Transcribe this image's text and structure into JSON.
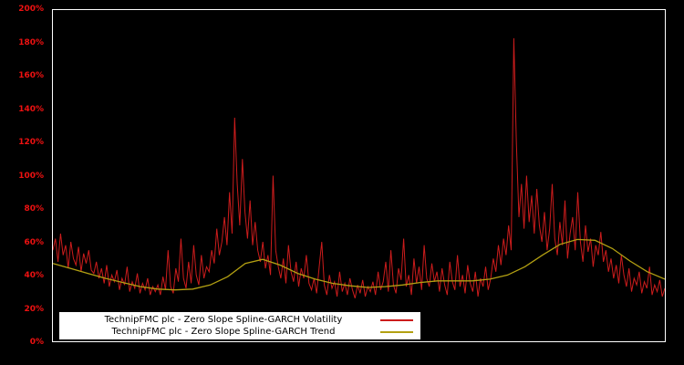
{
  "colors": {
    "background": "#000000",
    "plot_border": "#ffffff",
    "axis_label": "#ee1111",
    "volatility_line": "#cc1c1c",
    "trend_line": "#b3a012",
    "legend_background": "#ffffff",
    "legend_text": "#000000"
  },
  "chart_data": {
    "type": "line",
    "title": "",
    "xlabel": "",
    "ylabel": "",
    "ylim": [
      0,
      200
    ],
    "grid": false,
    "legend_position": "bottom-left-inside",
    "yticks": [
      "0%",
      "20%",
      "40%",
      "60%",
      "80%",
      "100%",
      "120%",
      "140%",
      "160%",
      "180%",
      "200%"
    ],
    "series": [
      {
        "name": "TechnipFMC plc - Zero Slope Spline-GARCH Volatility",
        "color": "#cc1c1c",
        "width": 1,
        "values": [
          55,
          62,
          48,
          65,
          52,
          58,
          44,
          60,
          50,
          46,
          57,
          42,
          53,
          47,
          55,
          43,
          41,
          48,
          38,
          44,
          35,
          46,
          33,
          40,
          36,
          43,
          31,
          38,
          34,
          45,
          30,
          36,
          32,
          41,
          29,
          35,
          31,
          38,
          28,
          33,
          30,
          34,
          28,
          39,
          31,
          55,
          33,
          29,
          44,
          36,
          62,
          38,
          32,
          48,
          35,
          58,
          40,
          34,
          52,
          38,
          45,
          42,
          55,
          47,
          68,
          52,
          60,
          75,
          58,
          90,
          65,
          135,
          95,
          70,
          110,
          78,
          62,
          85,
          58,
          72,
          55,
          48,
          60,
          44,
          52,
          40,
          100,
          55,
          45,
          38,
          50,
          35,
          58,
          42,
          36,
          48,
          33,
          44,
          38,
          52,
          35,
          31,
          38,
          29,
          45,
          60,
          34,
          28,
          40,
          32,
          36,
          27,
          42,
          30,
          35,
          28,
          38,
          31,
          26,
          34,
          29,
          37,
          27,
          33,
          30,
          36,
          28,
          42,
          31,
          36,
          48,
          30,
          55,
          34,
          29,
          44,
          37,
          62,
          33,
          40,
          28,
          50,
          35,
          45,
          31,
          58,
          38,
          33,
          47,
          36,
          42,
          30,
          44,
          34,
          28,
          48,
          36,
          31,
          52,
          33,
          40,
          29,
          46,
          35,
          30,
          42,
          27,
          38,
          33,
          45,
          31,
          38,
          50,
          42,
          58,
          46,
          62,
          52,
          70,
          55,
          183,
          120,
          75,
          95,
          68,
          100,
          72,
          88,
          65,
          92,
          70,
          60,
          78,
          55,
          68,
          95,
          62,
          52,
          72,
          58,
          85,
          50,
          65,
          75,
          55,
          90,
          60,
          48,
          70,
          54,
          62,
          45,
          58,
          52,
          66,
          48,
          55,
          42,
          50,
          38,
          46,
          35,
          52,
          40,
          33,
          44,
          30,
          38,
          34,
          42,
          29,
          36,
          32,
          45,
          28,
          34,
          30,
          37,
          27,
          32
        ]
      },
      {
        "name": "TechnipFMC plc - Zero Slope Spline-GARCH Trend",
        "color": "#b3a012",
        "width": 1.3,
        "values": [
          47,
          44,
          41,
          38,
          35.5,
          33,
          31.5,
          31,
          31.5,
          34,
          39,
          47,
          49.5,
          46,
          41,
          37.5,
          35,
          33.5,
          32.5,
          33,
          34,
          35.5,
          36.5,
          36.5,
          36.5,
          37.5,
          40,
          45,
          52,
          58.5,
          61.5,
          61,
          56,
          48.5,
          42,
          37.5
        ]
      }
    ]
  }
}
